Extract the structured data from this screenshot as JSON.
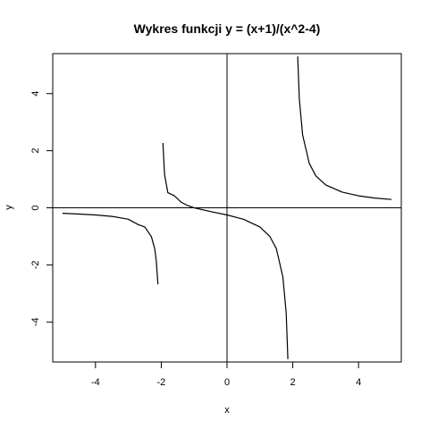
{
  "chart_data": {
    "type": "line",
    "title": "Wykres funkcji y = (x+1)/(x^2-4)",
    "xlabel": "x",
    "ylabel": "y",
    "xlim": [
      -5.3,
      5.3
    ],
    "ylim": [
      -5.4,
      5.4
    ],
    "x_ticks": [
      -4,
      -2,
      0,
      2,
      4
    ],
    "x_tick_labels": [
      "-4",
      "-2",
      "0",
      "2",
      "4"
    ],
    "y_ticks": [
      -4,
      -2,
      0,
      2,
      4
    ],
    "y_tick_labels": [
      "-4",
      "-2",
      "0",
      "2",
      "4"
    ],
    "grid": false,
    "reference_lines": {
      "x": 0,
      "y": 0
    },
    "series": [
      {
        "points": [
          [
            -5,
            -0.19
          ],
          [
            -4.5,
            -0.22
          ],
          [
            -4,
            -0.25
          ],
          [
            -3.5,
            -0.3
          ],
          [
            -3,
            -0.4
          ],
          [
            -2.7,
            -0.59
          ],
          [
            -2.5,
            -0.67
          ],
          [
            -2.3,
            -1.01
          ],
          [
            -2.2,
            -1.43
          ],
          [
            -2.15,
            -1.87
          ],
          [
            -2.1,
            -2.68
          ]
        ]
      },
      {
        "points": [
          [
            -1.95,
            2.27
          ],
          [
            -1.9,
            1.17
          ],
          [
            -1.8,
            0.53
          ],
          [
            -1.6,
            0.42
          ],
          [
            -1.4,
            0.2
          ],
          [
            -1.2,
            0.08
          ],
          [
            -1.0,
            0.0
          ],
          [
            -0.5,
            -0.13
          ],
          [
            0,
            -0.25
          ],
          [
            0.5,
            -0.4
          ],
          [
            1.0,
            -0.67
          ],
          [
            1.3,
            -1.0
          ],
          [
            1.5,
            -1.43
          ],
          [
            1.7,
            -2.42
          ],
          [
            1.8,
            -3.68
          ],
          [
            1.85,
            -5.3
          ]
        ]
      },
      {
        "points": [
          [
            2.15,
            5.3
          ],
          [
            2.2,
            3.81
          ],
          [
            2.3,
            2.55
          ],
          [
            2.5,
            1.56
          ],
          [
            2.7,
            1.12
          ],
          [
            3.0,
            0.8
          ],
          [
            3.5,
            0.55
          ],
          [
            4.0,
            0.42
          ],
          [
            4.5,
            0.34
          ],
          [
            5.0,
            0.29
          ]
        ]
      }
    ]
  }
}
